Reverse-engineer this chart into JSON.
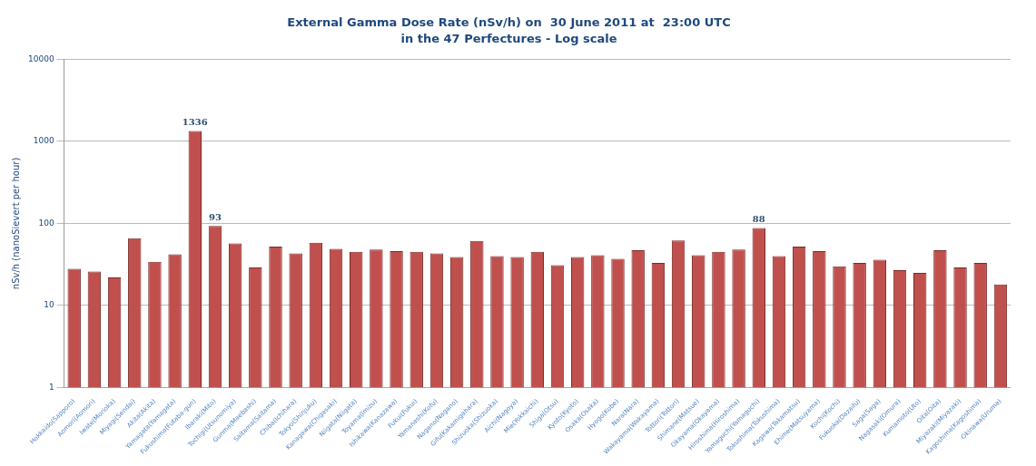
{
  "chart_data": {
    "type": "bar",
    "title": "External Gamma Dose Rate (nSv/h) on  30 June 2011 at  23:00 UTC",
    "subtitle": "in the 47 Perfectures - Log scale",
    "ylabel": "nSv/h (nanoSievert per hour)",
    "categories": [
      "Hokkaido(Sapporo)",
      "Aomori(Aomori)",
      "Iwate(Morioka)",
      "Miyagi(Sendai)",
      "Akita(Akita)",
      "Yamagata(Yamagata)",
      "Fukushima(Futaba-gun)",
      "Ibaraki(Mito)",
      "Tochigi(Utsunomiya)",
      "Gunma(Maebashi)",
      "Saitama(Saitama)",
      "Chiba(Ichihara)",
      "Tokyo(Shinjuku)",
      "Kanagawa(Chigasaki)",
      "Niigata(Niigata)",
      "Toyama(Imizu)",
      "Ishikawa(Kanazawa)",
      "Fukui(Fukui)",
      "Yamanashi(Kofu)",
      "Nagano(Nagano)",
      "Gifu(Kakamigahara)",
      "Shizuoka(Shizuoka)",
      "Aichi(Nagoya)",
      "Mie(Yokkaichi)",
      "Shiga(Otsu)",
      "Kyoto(Kyoto)",
      "Osaka(Osaka)",
      "Hyogo(Kobe)",
      "Nara(Nara)",
      "Wakayama(Wakayama)",
      "Tottori(Tottori)",
      "Shimane(Matsue)",
      "Okayama(Okayama)",
      "Hiroshima(Hiroshima)",
      "Yamaguchi(Yamaguchi)",
      "Tokushima(Tokushima)",
      "Kagawa(Takamatsu)",
      "Ehime(Matsuyama)",
      "Kochi(Kochi)",
      "Fukuoka(Dazaifu)",
      "Saga(Saga)",
      "Nagasaki(Omura)",
      "Kumamoto(Uto)",
      "Oita(Oita)",
      "Miyazaki(Miyazaki)",
      "Kagoshima(Kagoshima)",
      "Okinawa(Uruma)"
    ],
    "values": [
      28,
      26,
      22,
      66,
      34,
      42,
      1336,
      93,
      57,
      29,
      52,
      43,
      58,
      49,
      45,
      48,
      46,
      45,
      43,
      39,
      61,
      40,
      39,
      45,
      31,
      39,
      41,
      37,
      47,
      33,
      62,
      41,
      45,
      48,
      88,
      40,
      52,
      46,
      30,
      33,
      36,
      27,
      25,
      47,
      29,
      33,
      18
    ],
    "value_labels": [
      null,
      null,
      null,
      null,
      null,
      null,
      "1336",
      "93",
      null,
      null,
      null,
      null,
      null,
      null,
      null,
      null,
      null,
      null,
      null,
      null,
      null,
      null,
      null,
      null,
      null,
      null,
      null,
      null,
      null,
      null,
      null,
      null,
      null,
      null,
      "88",
      null,
      null,
      null,
      null,
      null,
      null,
      null,
      null,
      null,
      null,
      null,
      null
    ],
    "color": "#c0504d",
    "log": true,
    "ylim": [
      1,
      10000
    ],
    "yticks": [
      1,
      10,
      100,
      1000,
      10000
    ],
    "grid": "y"
  }
}
